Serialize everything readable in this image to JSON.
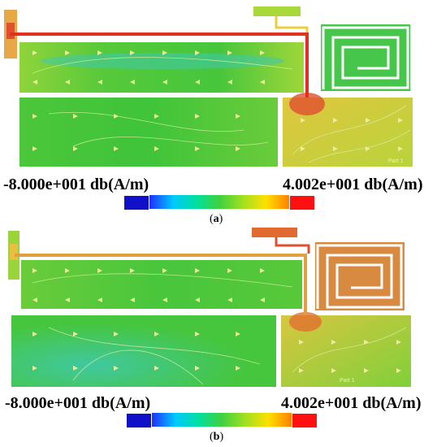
{
  "figure": {
    "panels": [
      {
        "id": "a",
        "caption_open": "(",
        "caption_letter": "a",
        "caption_close": ")",
        "scale_min_label": "-8.000e+001 db(A/m)",
        "scale_max_label": "4.002e+001 db(A/m)",
        "part_tag": "Part 1"
      },
      {
        "id": "b",
        "caption_open": "(",
        "caption_letter": "b",
        "caption_close": ")",
        "scale_min_label": "-8.000e+001 db(A/m)",
        "scale_max_label": "4.002e+001 db(A/m)",
        "part_tag": "Part 1"
      }
    ],
    "colorbar_colors": [
      "#1010c8",
      "#2030ff",
      "#00c8ff",
      "#00e0a0",
      "#40d040",
      "#a0e020",
      "#ffe000",
      "#ff8000",
      "#ff1010"
    ],
    "field_colors": {
      "green": "#3fc43a",
      "light_green": "#8fd43a",
      "yellow_green": "#c8d83a",
      "yellow": "#e8cf40",
      "orange": "#e8a040",
      "red": "#e03020",
      "cyan": "#40c8b0",
      "arrow": "#f4f0a0",
      "contour": "#d8f0a0"
    }
  }
}
